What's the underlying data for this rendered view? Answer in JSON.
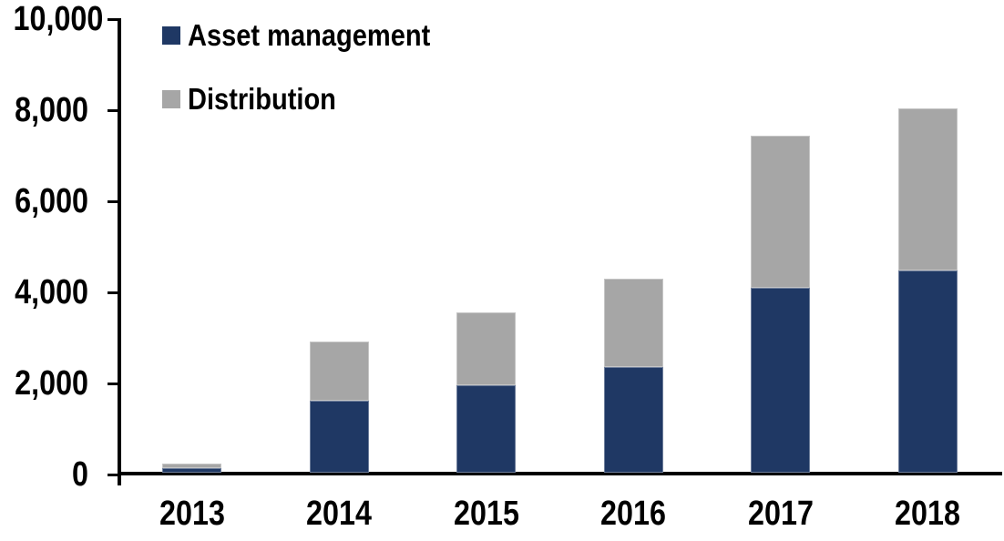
{
  "chart_data": {
    "type": "bar",
    "stacked": true,
    "title": "",
    "xlabel": "",
    "ylabel": "",
    "categories": [
      "2013",
      "2014",
      "2015",
      "2016",
      "2017",
      "2018"
    ],
    "series": [
      {
        "name": "Asset management",
        "color": "#1f3864",
        "values": [
          100,
          1580,
          1920,
          2330,
          4060,
          4440
        ]
      },
      {
        "name": "Distribution",
        "color": "#a6a6a6",
        "values": [
          100,
          1300,
          1600,
          1930,
          3340,
          3560
        ]
      }
    ],
    "totals": [
      200,
      2880,
      3520,
      4260,
      7400,
      8000
    ],
    "y_ticks": [
      "0",
      "2,000",
      "4,000",
      "6,000",
      "8,000",
      "10,000"
    ],
    "y_tick_values": [
      0,
      2000,
      4000,
      6000,
      8000,
      10000
    ],
    "ylim": [
      0,
      10000
    ],
    "grid": false,
    "legend_position": "top-left",
    "axis_color": "#000000",
    "background_color": "#ffffff"
  }
}
